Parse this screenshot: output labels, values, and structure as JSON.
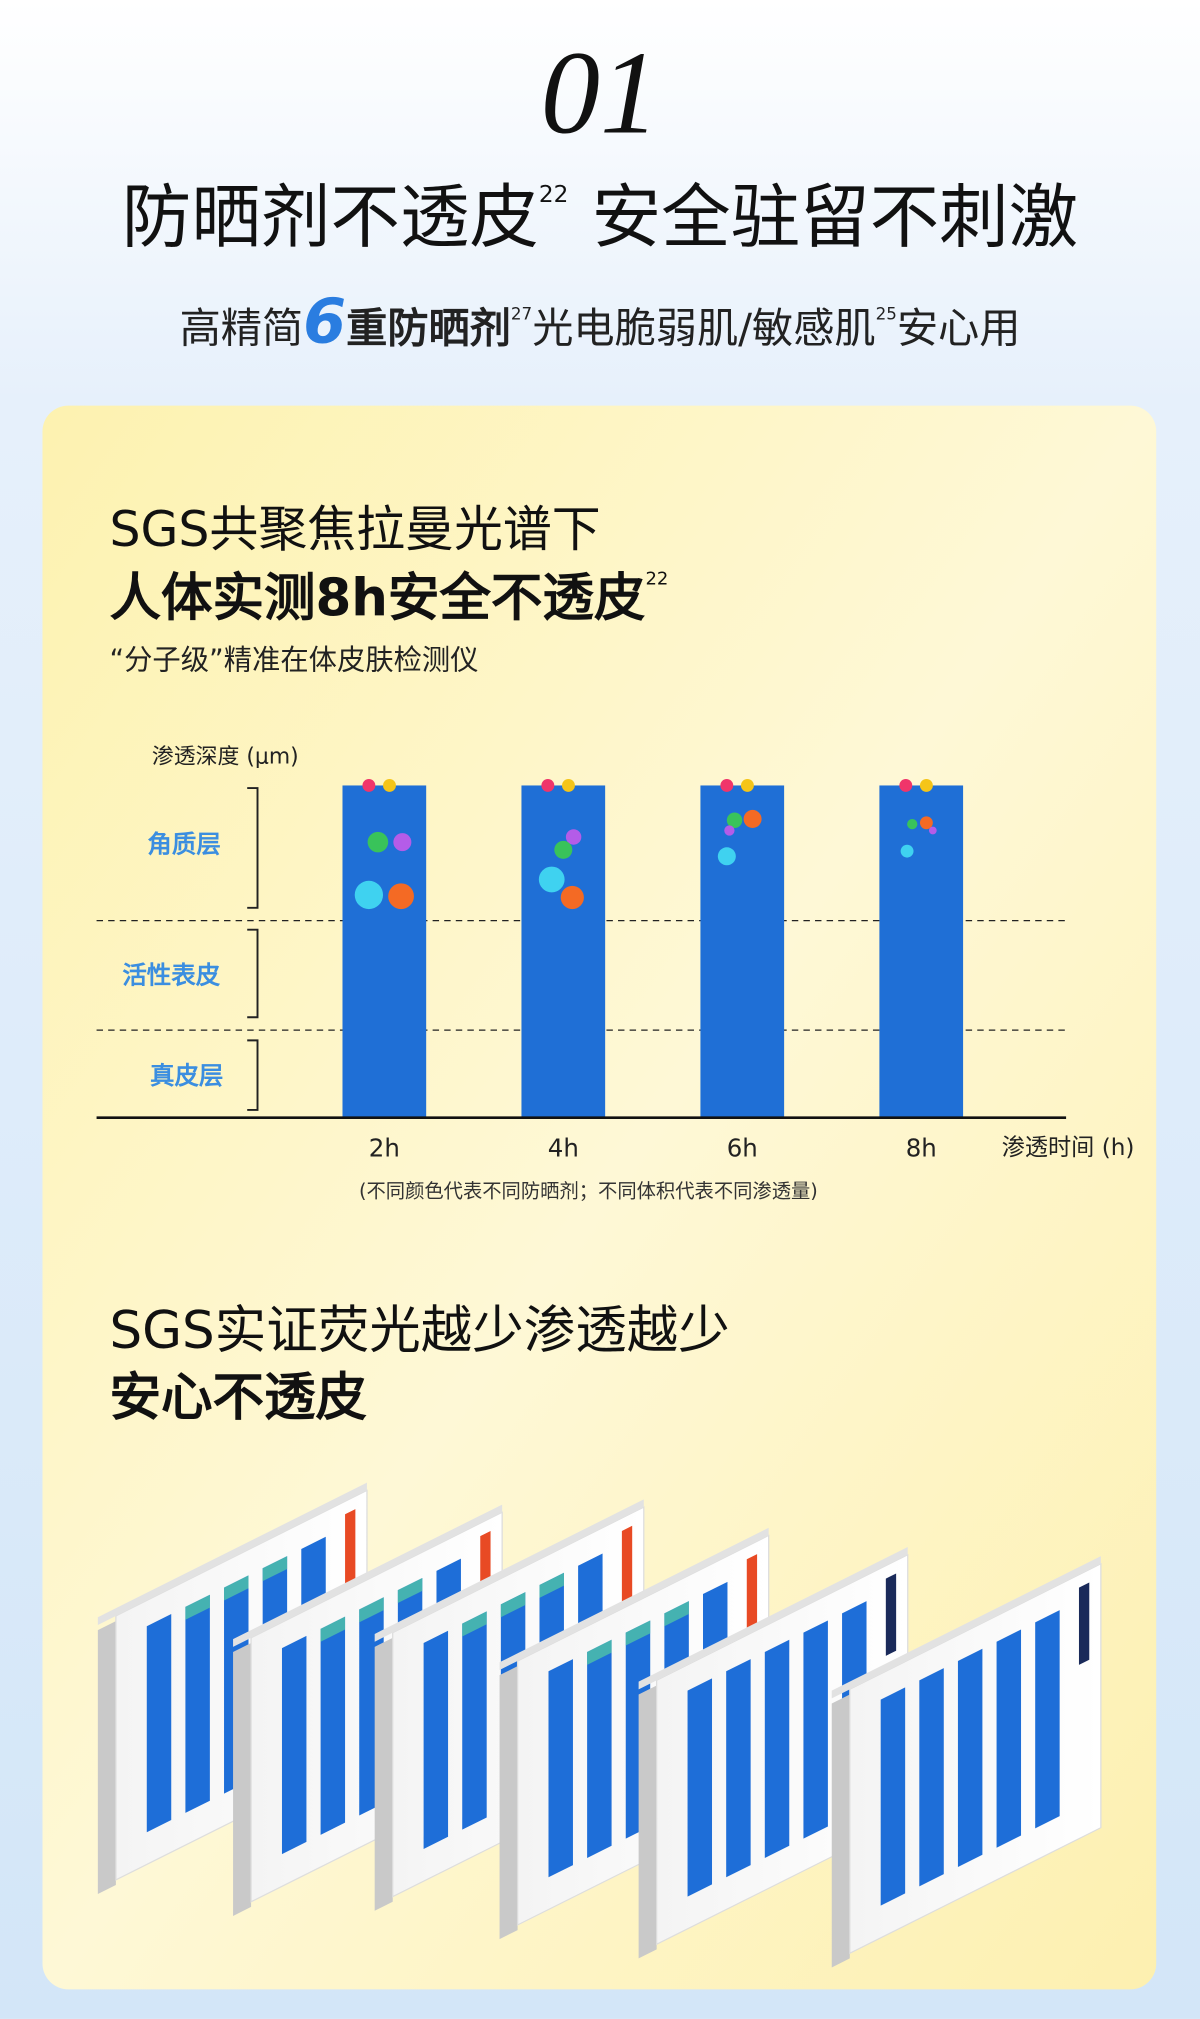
{
  "header": {
    "number": "01",
    "title": "防晒剂不透皮",
    "title_sup": "22",
    "title_rest": "安全驻留不刺激",
    "subtitle": {
      "part1": "高精简",
      "highlight": "6",
      "part2": "重防晒剂",
      "sup1": "27",
      "part3": "光电脆弱肌/敏感肌",
      "sup2": "25",
      "part4": "安心用"
    }
  },
  "section1": {
    "line1": "SGS共聚焦拉曼光谱下",
    "line2": "人体实测8h安全不透皮",
    "line2_sup": "22",
    "note": "“分子级”精准在体皮肤检测仪",
    "diagram": {
      "y_axis_label": "渗透深度 (μm)",
      "layers": [
        "角质层",
        "活性表皮",
        "真皮层"
      ],
      "times": [
        "2h",
        "4h",
        "6h",
        "8h"
      ],
      "x_axis_label": "渗透时间 (h)",
      "footnote": "(不同颜色代表不同防晒剂；不同体积代表不同渗透量)"
    }
  },
  "section2": {
    "line1": "SGS实证荧光越少渗透越少",
    "line2": "安心不透皮"
  }
}
